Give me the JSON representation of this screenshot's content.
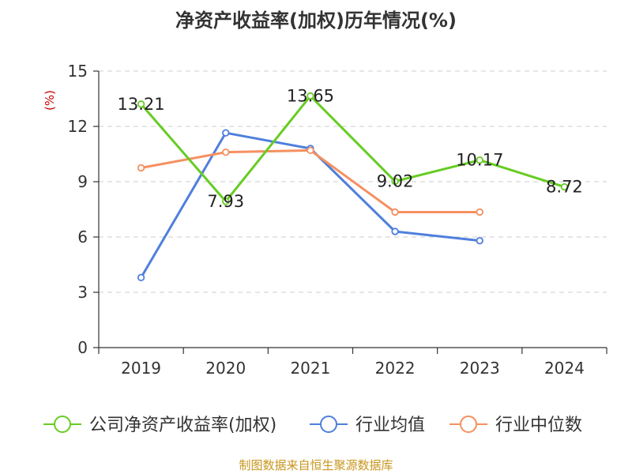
{
  "title": "净资产收益率(加权)历年情况(%)",
  "unit_label": "(%)",
  "source": "制图数据来自恒生聚源数据库",
  "colors": {
    "company": "#66cc22",
    "industry_avg": "#4f7fdc",
    "industry_median": "#f59060",
    "unit": "#cc0000",
    "source": "#c8961e",
    "grid": "#cccccc",
    "axis": "#333333"
  },
  "chart_data": {
    "type": "line",
    "title": "净资产收益率(加权)历年情况(%)",
    "ylabel": "(%)",
    "xlabel": "",
    "categories": [
      "2019",
      "2020",
      "2021",
      "2022",
      "2023",
      "2024"
    ],
    "ylim": [
      0,
      15
    ],
    "yticks": [
      0,
      3,
      6,
      9,
      12,
      15
    ],
    "grid": "horizontal dashed",
    "legend_position": "bottom",
    "series": [
      {
        "name": "公司净资产收益率(加权)",
        "color": "#66cc22",
        "values": [
          13.21,
          7.93,
          13.65,
          9.02,
          10.17,
          8.72
        ],
        "labels": [
          "13.21",
          "7.93",
          "13.65",
          "9.02",
          "10.17",
          "8.72"
        ]
      },
      {
        "name": "行业均值",
        "color": "#4f7fdc",
        "values": [
          3.8,
          11.65,
          10.8,
          6.3,
          5.8,
          null
        ],
        "labels": []
      },
      {
        "name": "行业中位数",
        "color": "#f59060",
        "values": [
          9.75,
          10.6,
          10.7,
          7.35,
          7.35,
          null
        ],
        "labels": []
      }
    ]
  }
}
